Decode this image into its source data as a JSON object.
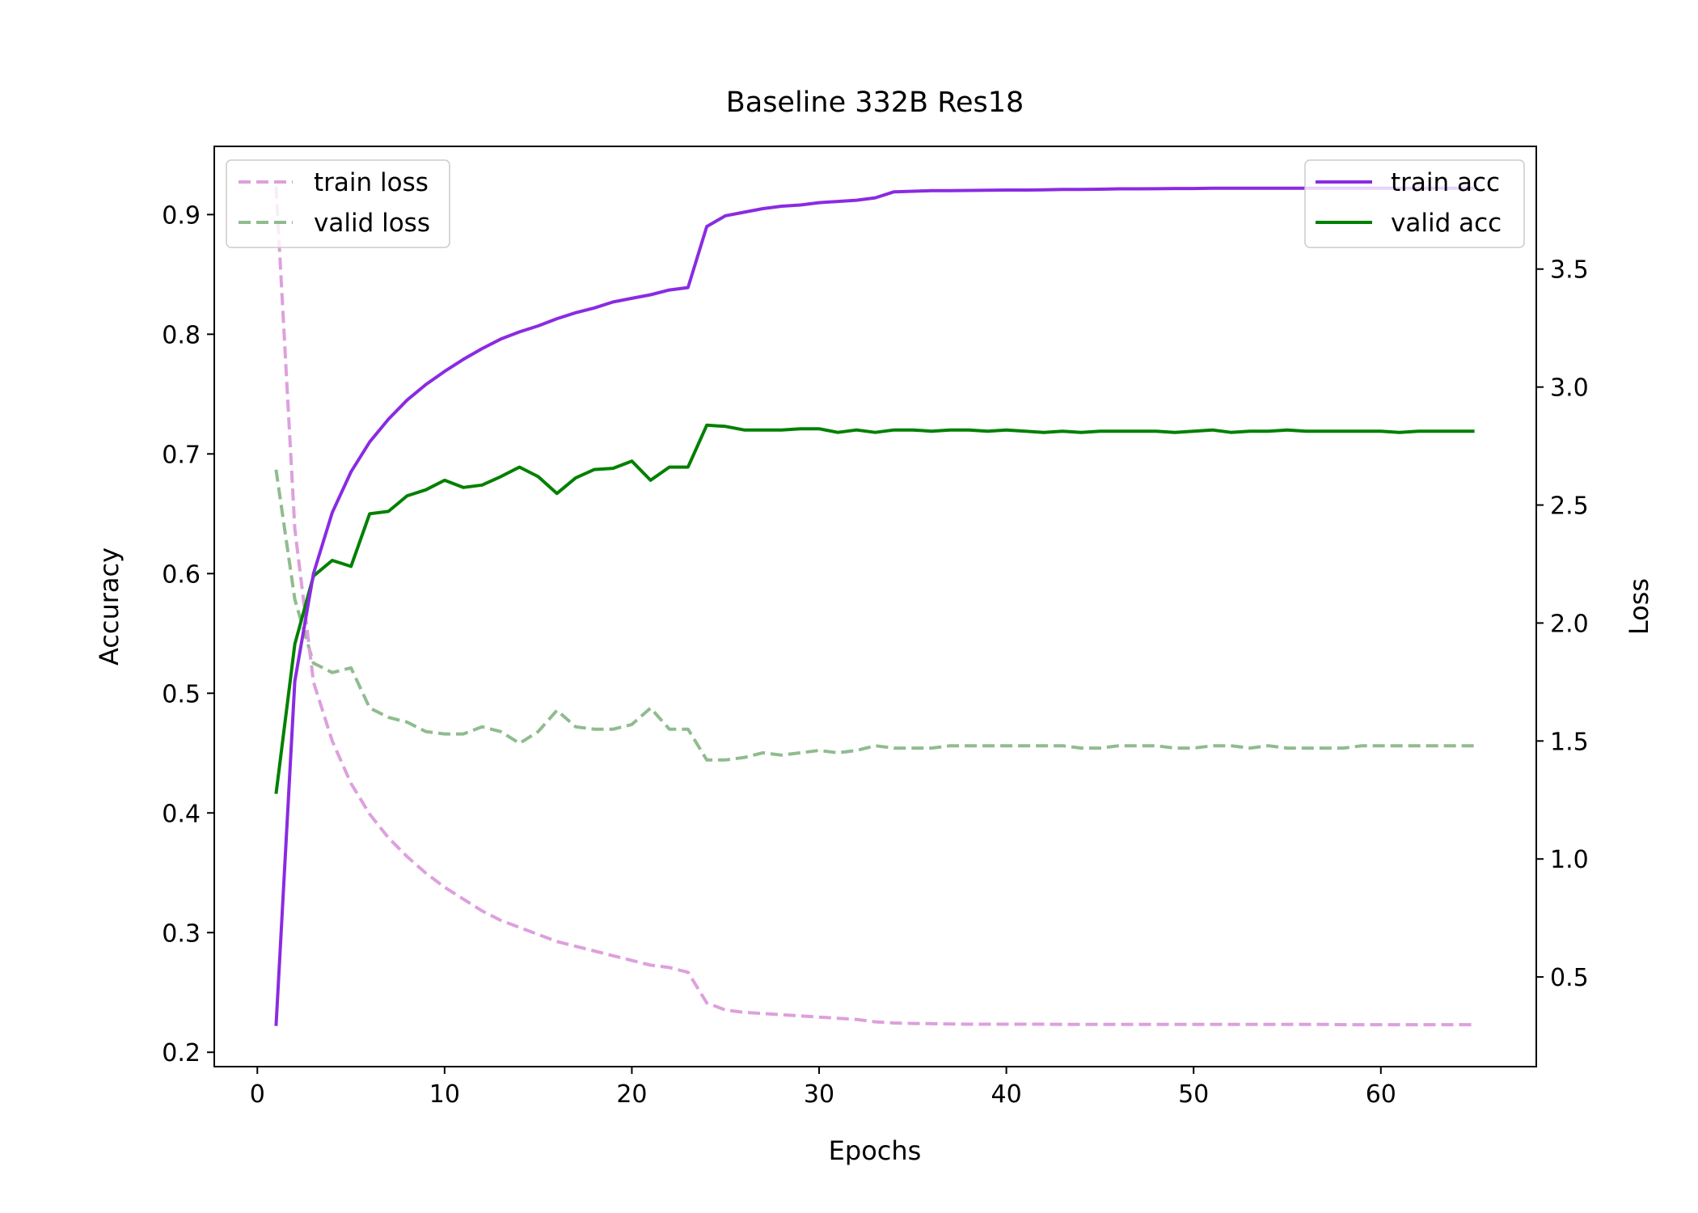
{
  "chart_data": {
    "type": "line",
    "title": "Baseline 332B Res18",
    "xlabel": "Epochs",
    "ylabel_left": "Accuracy",
    "ylabel_right": "Loss",
    "xlim": [
      -2.3,
      68.3
    ],
    "ylim_left": [
      0.188,
      0.957
    ],
    "ylim_right": [
      0.12,
      4.02
    ],
    "x_ticks": [
      0,
      10,
      20,
      30,
      40,
      50,
      60
    ],
    "y_ticks_left": [
      0.2,
      0.3,
      0.4,
      0.5,
      0.6,
      0.7,
      0.8,
      0.9
    ],
    "y_ticks_right": [
      0.5,
      1.0,
      1.5,
      2.0,
      2.5,
      3.0,
      3.5
    ],
    "grid": false,
    "legend_left": {
      "placement": "top-left",
      "entries": [
        "train loss",
        "valid loss"
      ]
    },
    "legend_right": {
      "placement": "top-right",
      "entries": [
        "train acc",
        "valid acc"
      ]
    },
    "colors": {
      "train_acc": "#8a2be2",
      "valid_acc": "#008000",
      "train_loss": "#dda0dd",
      "valid_loss": "#8fbc8f"
    },
    "series": [
      {
        "name": "train acc",
        "axis": "left",
        "style": "solid",
        "values": [
          0.222,
          0.51,
          0.6,
          0.651,
          0.685,
          0.71,
          0.729,
          0.745,
          0.758,
          0.769,
          0.779,
          0.788,
          0.796,
          0.802,
          0.807,
          0.813,
          0.818,
          0.822,
          0.827,
          0.83,
          0.833,
          0.837,
          0.839,
          0.89,
          0.899,
          0.902,
          0.905,
          0.907,
          0.908,
          0.91,
          0.911,
          0.912,
          0.914,
          0.919,
          0.9195,
          0.92,
          0.92,
          0.9202,
          0.9203,
          0.9205,
          0.9205,
          0.9207,
          0.921,
          0.921,
          0.9212,
          0.9215,
          0.9215,
          0.9216,
          0.9218,
          0.9218,
          0.922,
          0.922,
          0.922,
          0.922,
          0.922,
          0.922,
          0.922,
          0.922,
          0.922,
          0.922,
          0.922,
          0.922,
          0.922,
          0.922,
          0.922
        ]
      },
      {
        "name": "valid acc",
        "axis": "left",
        "style": "solid",
        "values": [
          0.416,
          0.541,
          0.598,
          0.611,
          0.606,
          0.65,
          0.652,
          0.665,
          0.67,
          0.678,
          0.672,
          0.674,
          0.681,
          0.689,
          0.681,
          0.667,
          0.68,
          0.687,
          0.688,
          0.694,
          0.678,
          0.689,
          0.689,
          0.724,
          0.723,
          0.72,
          0.72,
          0.72,
          0.721,
          0.721,
          0.718,
          0.72,
          0.718,
          0.72,
          0.72,
          0.719,
          0.72,
          0.72,
          0.719,
          0.72,
          0.719,
          0.718,
          0.719,
          0.718,
          0.719,
          0.719,
          0.719,
          0.719,
          0.718,
          0.719,
          0.72,
          0.718,
          0.719,
          0.719,
          0.72,
          0.719,
          0.719,
          0.719,
          0.719,
          0.719,
          0.718,
          0.719,
          0.719,
          0.719,
          0.719
        ]
      },
      {
        "name": "train loss",
        "axis": "right",
        "style": "dashed",
        "values": [
          3.85,
          2.4,
          1.75,
          1.5,
          1.32,
          1.19,
          1.09,
          1.01,
          0.94,
          0.88,
          0.83,
          0.78,
          0.74,
          0.71,
          0.68,
          0.65,
          0.63,
          0.61,
          0.59,
          0.57,
          0.55,
          0.54,
          0.52,
          0.39,
          0.36,
          0.35,
          0.345,
          0.34,
          0.335,
          0.33,
          0.325,
          0.32,
          0.31,
          0.305,
          0.303,
          0.302,
          0.301,
          0.3,
          0.3,
          0.3,
          0.3,
          0.3,
          0.299,
          0.299,
          0.299,
          0.299,
          0.299,
          0.299,
          0.299,
          0.299,
          0.299,
          0.299,
          0.299,
          0.299,
          0.299,
          0.299,
          0.299,
          0.298,
          0.298,
          0.298,
          0.298,
          0.298,
          0.298,
          0.298,
          0.298
        ]
      },
      {
        "name": "valid loss",
        "axis": "right",
        "style": "dashed",
        "values": [
          2.65,
          2.1,
          1.83,
          1.79,
          1.81,
          1.64,
          1.6,
          1.58,
          1.54,
          1.53,
          1.53,
          1.56,
          1.54,
          1.49,
          1.54,
          1.63,
          1.56,
          1.55,
          1.55,
          1.57,
          1.64,
          1.55,
          1.55,
          1.42,
          1.42,
          1.43,
          1.45,
          1.44,
          1.45,
          1.46,
          1.45,
          1.46,
          1.48,
          1.47,
          1.47,
          1.47,
          1.48,
          1.48,
          1.48,
          1.48,
          1.48,
          1.48,
          1.48,
          1.47,
          1.47,
          1.48,
          1.48,
          1.48,
          1.47,
          1.47,
          1.48,
          1.48,
          1.47,
          1.48,
          1.47,
          1.47,
          1.47,
          1.47,
          1.48,
          1.48,
          1.48,
          1.48,
          1.48,
          1.48,
          1.48
        ]
      }
    ]
  }
}
